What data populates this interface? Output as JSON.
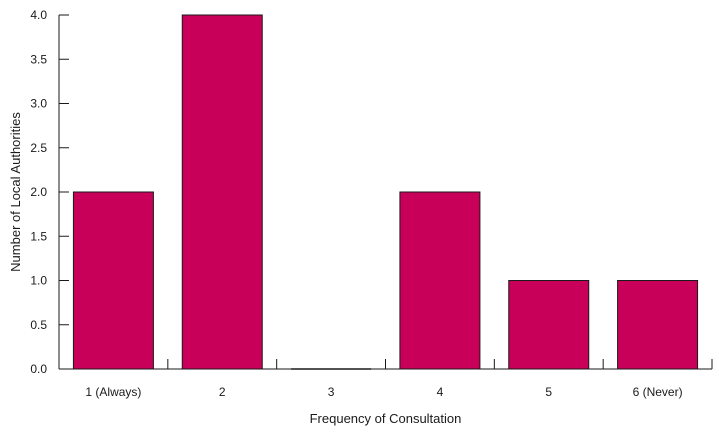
{
  "chart_data": {
    "type": "bar",
    "title": "",
    "xlabel": "Frequency of Consultation",
    "ylabel": "Number of Local Authorities",
    "categories": [
      "1 (Always)",
      "2",
      "3",
      "4",
      "5",
      "6 (Never)"
    ],
    "values": [
      2,
      4,
      0,
      2,
      1,
      1
    ],
    "ylim": [
      0,
      4
    ],
    "yticks": [
      "0.0",
      "0.5",
      "1.0",
      "1.5",
      "2.0",
      "2.5",
      "3.0",
      "3.5",
      "4.0"
    ],
    "grid": false,
    "legend": "none",
    "bar_color": "#c8005a",
    "bar_edge_color": "#1a1a1a"
  }
}
